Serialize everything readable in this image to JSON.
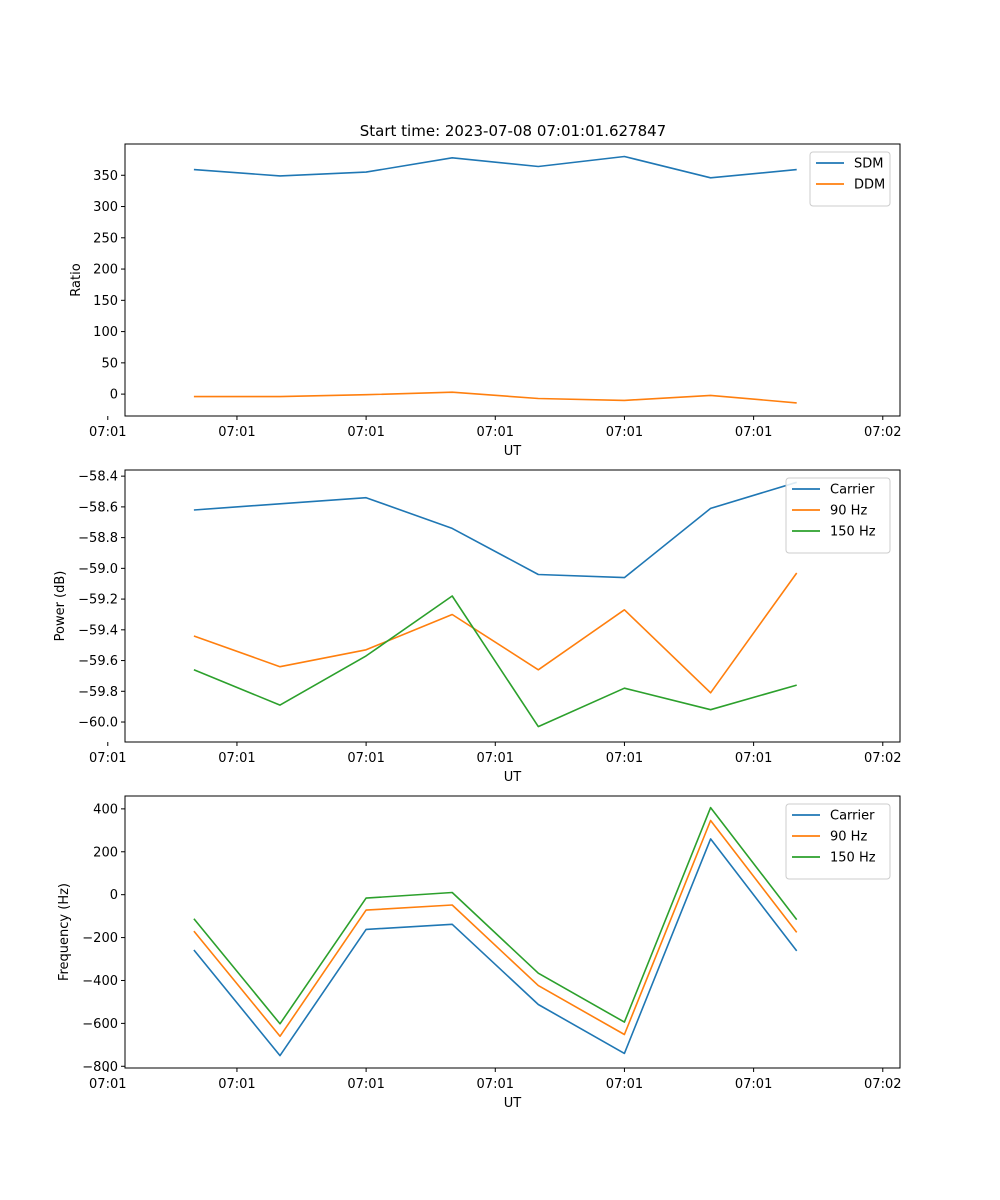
{
  "figure_title": "Start time: 2023-07-08 07:01:01.627847",
  "chart_data": [
    {
      "type": "line",
      "title": "Start time: 2023-07-08 07:01:01.627847",
      "xlabel": "UT",
      "ylabel": "Ratio",
      "x": [
        1,
        2,
        3,
        4,
        5,
        6,
        7,
        8
      ],
      "xlim": [
        0.2,
        9.2
      ],
      "x_ticks": [
        0,
        1.5,
        3,
        4.5,
        6,
        7.5,
        9
      ],
      "x_tick_labels": [
        "07:01",
        "07:01",
        "07:01",
        "07:01",
        "07:01",
        "07:01",
        "07:02"
      ],
      "ylim": [
        -35,
        400
      ],
      "y_ticks": [
        0,
        50,
        100,
        150,
        200,
        250,
        300,
        350
      ],
      "y_tick_labels": [
        "0",
        "50",
        "100",
        "150",
        "200",
        "250",
        "300",
        "350"
      ],
      "legend": "top-right",
      "series": [
        {
          "name": "SDM",
          "color": "#1f77b4",
          "values": [
            359,
            349,
            355,
            378,
            364,
            380,
            346,
            359
          ]
        },
        {
          "name": "DDM",
          "color": "#ff7f0e",
          "values": [
            -4,
            -4,
            -1,
            3,
            -7,
            -10,
            -2,
            -14
          ]
        }
      ]
    },
    {
      "type": "line",
      "title": "",
      "xlabel": "UT",
      "ylabel": "Power (dB)",
      "x": [
        1,
        2,
        3,
        4,
        5,
        6,
        7,
        8
      ],
      "xlim": [
        0.2,
        9.2
      ],
      "x_ticks": [
        0,
        1.5,
        3,
        4.5,
        6,
        7.5,
        9
      ],
      "x_tick_labels": [
        "07:01",
        "07:01",
        "07:01",
        "07:01",
        "07:01",
        "07:01",
        "07:02"
      ],
      "ylim": [
        -60.13,
        -58.36
      ],
      "y_ticks": [
        -60.0,
        -59.8,
        -59.6,
        -59.4,
        -59.2,
        -59.0,
        -58.8,
        -58.6,
        -58.4
      ],
      "y_tick_labels": [
        "−60.0",
        "−59.8",
        "−59.6",
        "−59.4",
        "−59.2",
        "−59.0",
        "−58.8",
        "−58.6",
        "−58.4"
      ],
      "legend": "top-right",
      "series": [
        {
          "name": "Carrier",
          "color": "#1f77b4",
          "values": [
            -58.62,
            -58.58,
            -58.54,
            -58.74,
            -59.04,
            -59.06,
            -58.61,
            -58.44
          ]
        },
        {
          "name": "90 Hz",
          "color": "#ff7f0e",
          "values": [
            -59.44,
            -59.64,
            -59.53,
            -59.3,
            -59.66,
            -59.27,
            -59.81,
            -59.03
          ]
        },
        {
          "name": "150 Hz",
          "color": "#2ca02c",
          "values": [
            -59.66,
            -59.89,
            -59.57,
            -59.18,
            -60.03,
            -59.78,
            -59.92,
            -59.76
          ]
        }
      ]
    },
    {
      "type": "line",
      "title": "",
      "xlabel": "UT",
      "ylabel": "Frequency (Hz)",
      "x": [
        1,
        2,
        3,
        4,
        5,
        6,
        7,
        8
      ],
      "xlim": [
        0.2,
        9.2
      ],
      "x_ticks": [
        0,
        1.5,
        3,
        4.5,
        6,
        7.5,
        9
      ],
      "x_tick_labels": [
        "07:01",
        "07:01",
        "07:01",
        "07:01",
        "07:01",
        "07:01",
        "07:02"
      ],
      "ylim": [
        -808,
        460
      ],
      "y_ticks": [
        -800,
        -600,
        -400,
        -200,
        0,
        200,
        400
      ],
      "y_tick_labels": [
        "−800",
        "−600",
        "−400",
        "−200",
        "0",
        "200",
        "400"
      ],
      "legend": "top-right",
      "series": [
        {
          "name": "Carrier",
          "color": "#1f77b4",
          "values": [
            -258,
            -750,
            -162,
            -138,
            -512,
            -740,
            260,
            -262
          ]
        },
        {
          "name": "90 Hz",
          "color": "#ff7f0e",
          "values": [
            -170,
            -660,
            -72,
            -48,
            -424,
            -652,
            346,
            -176
          ]
        },
        {
          "name": "150 Hz",
          "color": "#2ca02c",
          "values": [
            -112,
            -602,
            -16,
            10,
            -366,
            -594,
            406,
            -116
          ]
        }
      ]
    }
  ]
}
